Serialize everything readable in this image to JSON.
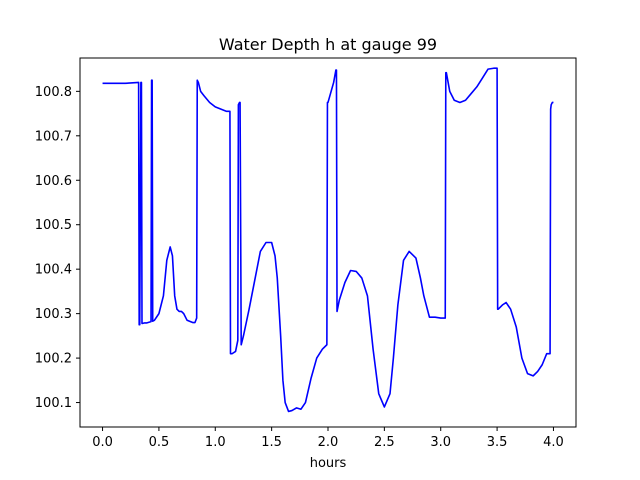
{
  "chart_data": {
    "type": "line",
    "title": "Water Depth h at gauge 99",
    "xlabel": "hours",
    "ylabel": "",
    "xlim": [
      -0.2,
      4.2
    ],
    "ylim": [
      100.045,
      100.875
    ],
    "grid": false,
    "x_ticks": [
      0.0,
      0.5,
      1.0,
      1.5,
      2.0,
      2.5,
      3.0,
      3.5,
      4.0
    ],
    "x_tick_labels": [
      "0.0",
      "0.5",
      "1.0",
      "1.5",
      "2.0",
      "2.5",
      "3.0",
      "3.5",
      "4.0"
    ],
    "y_ticks": [
      100.1,
      100.2,
      100.3,
      100.4,
      100.5,
      100.6,
      100.7,
      100.8
    ],
    "y_tick_labels": [
      "100.1",
      "100.2",
      "100.3",
      "100.4",
      "100.5",
      "100.6",
      "100.7",
      "100.8"
    ],
    "series": [
      {
        "color": "#0000ff",
        "x": [
          0.0,
          0.2,
          0.32,
          0.325,
          0.33,
          0.34,
          0.345,
          0.35,
          0.355,
          0.37,
          0.39,
          0.43,
          0.435,
          0.44,
          0.445,
          0.46,
          0.5,
          0.54,
          0.57,
          0.6,
          0.62,
          0.64,
          0.66,
          0.68,
          0.7,
          0.72,
          0.75,
          0.78,
          0.8,
          0.82,
          0.835,
          0.84,
          0.85,
          0.87,
          0.9,
          0.95,
          1.0,
          1.05,
          1.1,
          1.13,
          1.135,
          1.15,
          1.18,
          1.2,
          1.205,
          1.215,
          1.22,
          1.23,
          1.25,
          1.3,
          1.35,
          1.4,
          1.45,
          1.5,
          1.53,
          1.55,
          1.58,
          1.6,
          1.62,
          1.65,
          1.68,
          1.72,
          1.76,
          1.8,
          1.85,
          1.9,
          1.95,
          1.99,
          1.995,
          2.0,
          2.05,
          2.07,
          2.075,
          2.08,
          2.1,
          2.15,
          2.2,
          2.25,
          2.3,
          2.35,
          2.4,
          2.45,
          2.5,
          2.55,
          2.58,
          2.62,
          2.67,
          2.72,
          2.78,
          2.82,
          2.85,
          2.9,
          2.95,
          3.0,
          3.04,
          3.045,
          3.05,
          3.08,
          3.12,
          3.17,
          3.22,
          3.27,
          3.32,
          3.37,
          3.42,
          3.47,
          3.5,
          3.505,
          3.51,
          3.55,
          3.58,
          3.62,
          3.67,
          3.72,
          3.77,
          3.82,
          3.86,
          3.9,
          3.94,
          3.97,
          3.975,
          3.98,
          3.99,
          4.0
        ],
        "y": [
          100.818,
          100.818,
          100.82,
          100.275,
          100.275,
          100.82,
          100.82,
          100.278,
          100.278,
          100.279,
          100.279,
          100.282,
          100.825,
          100.825,
          100.283,
          100.285,
          100.3,
          100.34,
          100.42,
          100.45,
          100.43,
          100.34,
          100.31,
          100.305,
          100.305,
          100.3,
          100.285,
          100.282,
          100.28,
          100.28,
          100.29,
          100.825,
          100.82,
          100.8,
          100.79,
          100.775,
          100.765,
          100.76,
          100.755,
          100.755,
          100.21,
          100.21,
          100.215,
          100.24,
          100.77,
          100.775,
          100.775,
          100.23,
          100.25,
          100.31,
          100.375,
          100.44,
          100.46,
          100.46,
          100.43,
          100.38,
          100.25,
          100.15,
          100.1,
          100.08,
          100.082,
          100.088,
          100.085,
          100.1,
          100.155,
          100.2,
          100.22,
          100.23,
          100.775,
          100.775,
          100.82,
          100.848,
          100.848,
          100.305,
          100.33,
          100.37,
          100.397,
          100.395,
          100.38,
          100.34,
          100.22,
          100.12,
          100.09,
          100.12,
          100.2,
          100.32,
          100.42,
          100.44,
          100.425,
          100.38,
          100.34,
          100.292,
          100.292,
          100.29,
          100.29,
          100.842,
          100.842,
          100.8,
          100.78,
          100.775,
          100.78,
          100.795,
          100.81,
          100.83,
          100.85,
          100.852,
          100.852,
          100.31,
          100.31,
          100.32,
          100.325,
          100.31,
          100.27,
          100.2,
          100.165,
          100.16,
          100.17,
          100.185,
          100.21,
          100.21,
          100.76,
          100.77,
          100.775,
          100.775
        ]
      }
    ]
  }
}
